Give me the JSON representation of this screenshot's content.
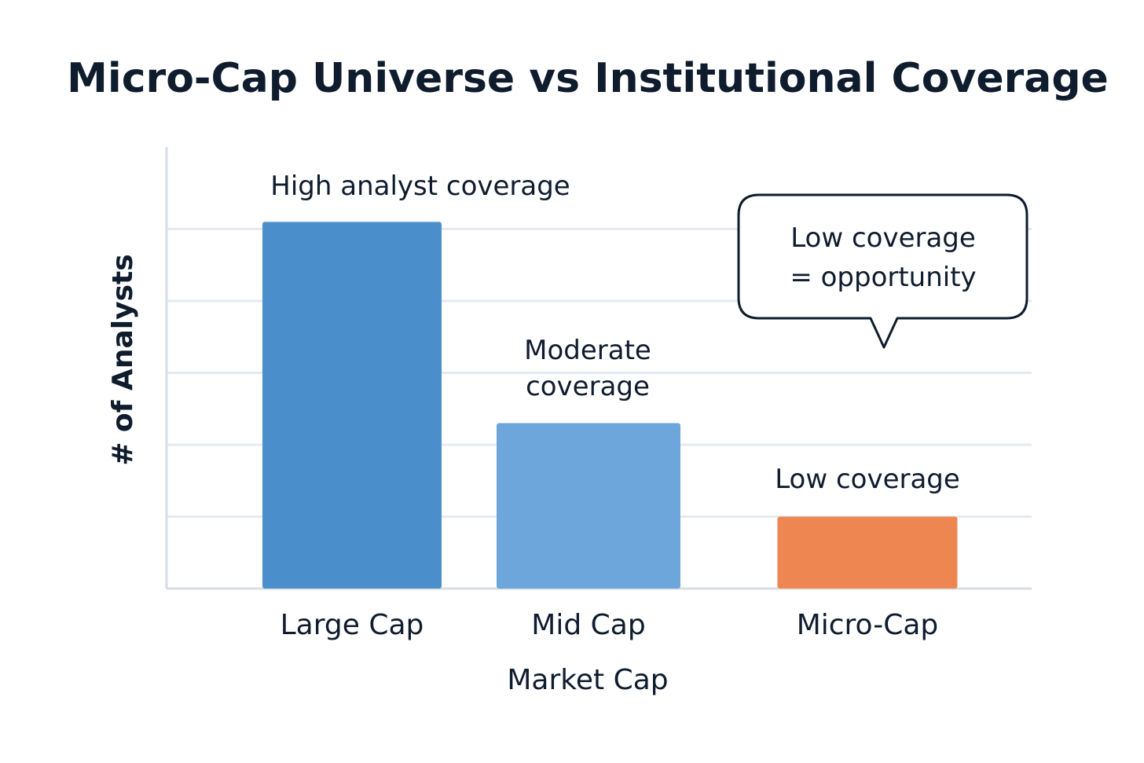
{
  "chart_data": {
    "type": "bar",
    "title": "Micro-Cap Universe vs Institutional Coverage",
    "xlabel": "Market Cap",
    "ylabel": "# of Analysts",
    "categories": [
      "Large Cap",
      "Mid Cap",
      "Micro-Cap"
    ],
    "values": [
      5.1,
      2.3,
      1.0
    ],
    "ylim": [
      0,
      6
    ],
    "grid": true,
    "legend": "none",
    "bar_annotations": [
      [
        "High analyst coverage"
      ],
      [
        "Moderate",
        "coverage"
      ],
      [
        "Low coverage"
      ]
    ],
    "callout": {
      "lines": [
        "Low coverage",
        "= opportunity"
      ]
    },
    "colors": {
      "bars": [
        "#4a8fcb",
        "#6ca6da",
        "#ee8652"
      ],
      "grid": "#e3eaf2",
      "axis": "#d7dee6",
      "text": "#0f1c2e",
      "callout_border": "#0f1c2e"
    }
  }
}
